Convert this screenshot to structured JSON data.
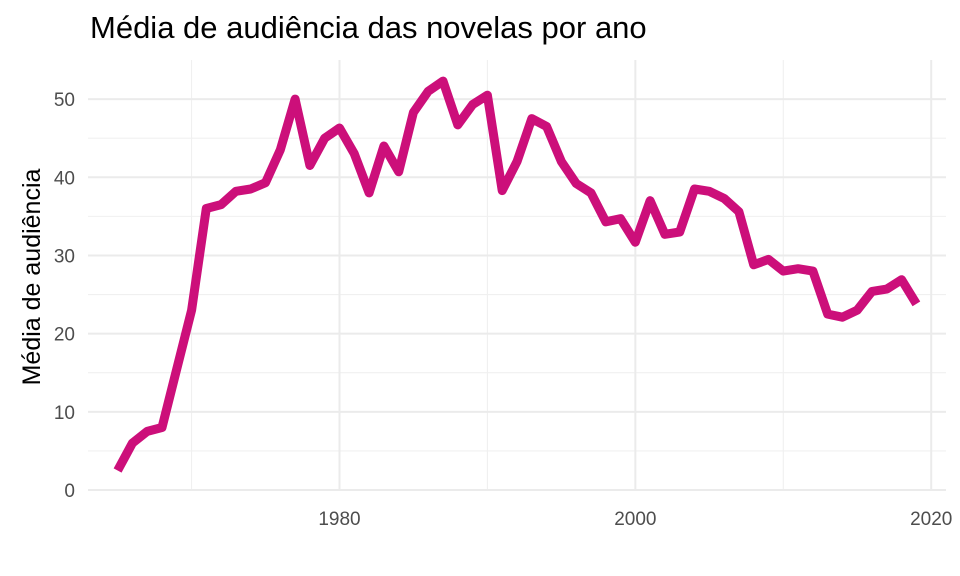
{
  "chart_data": {
    "type": "line",
    "title": "Média de audiência das novelas por ano",
    "xlabel": "",
    "ylabel": "Média de audiência",
    "xlim": [
      1963,
      2021
    ],
    "ylim": [
      0,
      55
    ],
    "x_ticks": [
      1980,
      2000,
      2020
    ],
    "y_ticks": [
      0,
      10,
      20,
      30,
      40,
      50
    ],
    "grid": true,
    "legend": "none",
    "series": [
      {
        "color": "#cc0f7a",
        "x": [
          1965,
          1966,
          1967,
          1968,
          1969,
          1970,
          1971,
          1972,
          1973,
          1974,
          1975,
          1976,
          1977,
          1978,
          1979,
          1980,
          1981,
          1982,
          1983,
          1984,
          1985,
          1986,
          1987,
          1988,
          1989,
          1990,
          1991,
          1992,
          1993,
          1994,
          1995,
          1996,
          1997,
          1998,
          1999,
          2000,
          2001,
          2002,
          2003,
          2004,
          2005,
          2006,
          2007,
          2008,
          2009,
          2010,
          2011,
          2012,
          2013,
          2014,
          2015,
          2016,
          2017,
          2018,
          2019
        ],
        "y": [
          2.5,
          6,
          7.5,
          8,
          15.5,
          23,
          36,
          36.5,
          38.2,
          38.5,
          39.3,
          43.5,
          50,
          41.5,
          45,
          46.3,
          43,
          38,
          44,
          40.7,
          48.3,
          51,
          52.3,
          46.7,
          49.3,
          50.5,
          38.3,
          42,
          47.5,
          46.5,
          42,
          39.2,
          38,
          34.3,
          34.7,
          31.7,
          37,
          32.7,
          33,
          38.5,
          38.2,
          37.3,
          35.6,
          28.8,
          29.5,
          28,
          28.3,
          28,
          22.5,
          22.1,
          23,
          25.4,
          25.7,
          26.9,
          23.8
        ]
      }
    ]
  }
}
